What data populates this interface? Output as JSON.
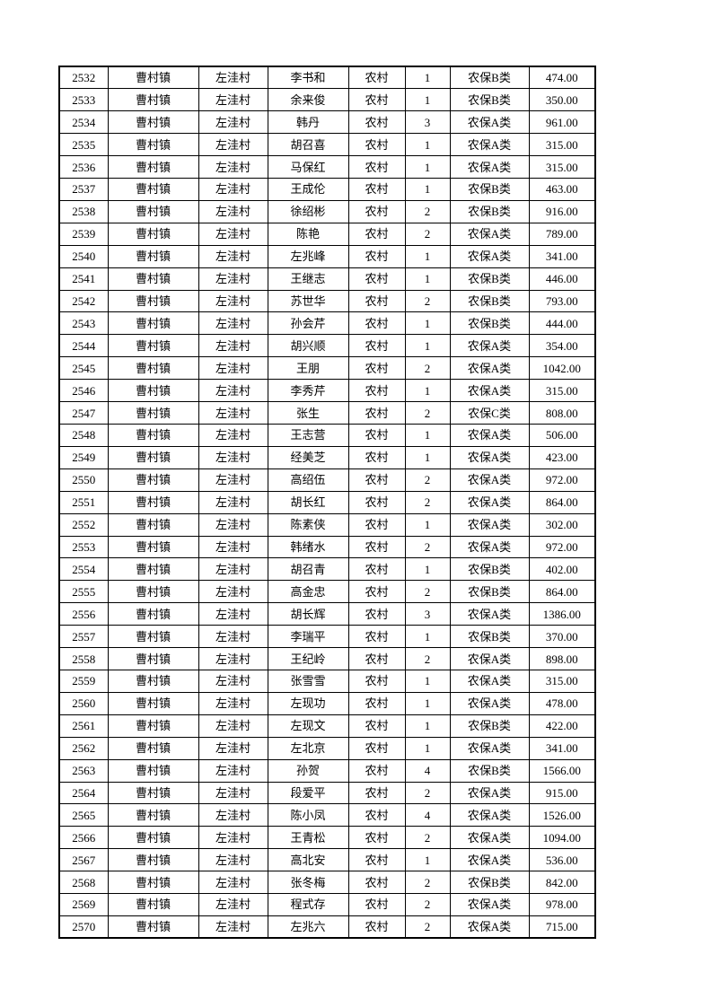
{
  "page": {
    "background_color": "#ffffff",
    "text_color": "#000000",
    "border_color": "#000000"
  },
  "table": {
    "rows": [
      [
        "2532",
        "曹村镇",
        "左洼村",
        "李书和",
        "农村",
        "1",
        "农保B类",
        "474.00"
      ],
      [
        "2533",
        "曹村镇",
        "左洼村",
        "余来俊",
        "农村",
        "1",
        "农保B类",
        "350.00"
      ],
      [
        "2534",
        "曹村镇",
        "左洼村",
        "韩丹",
        "农村",
        "3",
        "农保A类",
        "961.00"
      ],
      [
        "2535",
        "曹村镇",
        "左洼村",
        "胡召喜",
        "农村",
        "1",
        "农保A类",
        "315.00"
      ],
      [
        "2536",
        "曹村镇",
        "左洼村",
        "马保红",
        "农村",
        "1",
        "农保A类",
        "315.00"
      ],
      [
        "2537",
        "曹村镇",
        "左洼村",
        "王成伦",
        "农村",
        "1",
        "农保B类",
        "463.00"
      ],
      [
        "2538",
        "曹村镇",
        "左洼村",
        "徐绍彬",
        "农村",
        "2",
        "农保B类",
        "916.00"
      ],
      [
        "2539",
        "曹村镇",
        "左洼村",
        "陈艳",
        "农村",
        "2",
        "农保A类",
        "789.00"
      ],
      [
        "2540",
        "曹村镇",
        "左洼村",
        "左兆峰",
        "农村",
        "1",
        "农保A类",
        "341.00"
      ],
      [
        "2541",
        "曹村镇",
        "左洼村",
        "王继志",
        "农村",
        "1",
        "农保B类",
        "446.00"
      ],
      [
        "2542",
        "曹村镇",
        "左洼村",
        "苏世华",
        "农村",
        "2",
        "农保B类",
        "793.00"
      ],
      [
        "2543",
        "曹村镇",
        "左洼村",
        "孙会芹",
        "农村",
        "1",
        "农保B类",
        "444.00"
      ],
      [
        "2544",
        "曹村镇",
        "左洼村",
        "胡兴顺",
        "农村",
        "1",
        "农保A类",
        "354.00"
      ],
      [
        "2545",
        "曹村镇",
        "左洼村",
        "王朋",
        "农村",
        "2",
        "农保A类",
        "1042.00"
      ],
      [
        "2546",
        "曹村镇",
        "左洼村",
        "李秀芹",
        "农村",
        "1",
        "农保A类",
        "315.00"
      ],
      [
        "2547",
        "曹村镇",
        "左洼村",
        "张生",
        "农村",
        "2",
        "农保C类",
        "808.00"
      ],
      [
        "2548",
        "曹村镇",
        "左洼村",
        "王志营",
        "农村",
        "1",
        "农保A类",
        "506.00"
      ],
      [
        "2549",
        "曹村镇",
        "左洼村",
        "经美芝",
        "农村",
        "1",
        "农保A类",
        "423.00"
      ],
      [
        "2550",
        "曹村镇",
        "左洼村",
        "高绍伍",
        "农村",
        "2",
        "农保A类",
        "972.00"
      ],
      [
        "2551",
        "曹村镇",
        "左洼村",
        "胡长红",
        "农村",
        "2",
        "农保A类",
        "864.00"
      ],
      [
        "2552",
        "曹村镇",
        "左洼村",
        "陈素侠",
        "农村",
        "1",
        "农保A类",
        "302.00"
      ],
      [
        "2553",
        "曹村镇",
        "左洼村",
        "韩绪水",
        "农村",
        "2",
        "农保A类",
        "972.00"
      ],
      [
        "2554",
        "曹村镇",
        "左洼村",
        "胡召青",
        "农村",
        "1",
        "农保B类",
        "402.00"
      ],
      [
        "2555",
        "曹村镇",
        "左洼村",
        "高金忠",
        "农村",
        "2",
        "农保B类",
        "864.00"
      ],
      [
        "2556",
        "曹村镇",
        "左洼村",
        "胡长辉",
        "农村",
        "3",
        "农保A类",
        "1386.00"
      ],
      [
        "2557",
        "曹村镇",
        "左洼村",
        "李瑞平",
        "农村",
        "1",
        "农保B类",
        "370.00"
      ],
      [
        "2558",
        "曹村镇",
        "左洼村",
        "王纪岭",
        "农村",
        "2",
        "农保A类",
        "898.00"
      ],
      [
        "2559",
        "曹村镇",
        "左洼村",
        "张雪雪",
        "农村",
        "1",
        "农保A类",
        "315.00"
      ],
      [
        "2560",
        "曹村镇",
        "左洼村",
        "左现功",
        "农村",
        "1",
        "农保A类",
        "478.00"
      ],
      [
        "2561",
        "曹村镇",
        "左洼村",
        "左现文",
        "农村",
        "1",
        "农保B类",
        "422.00"
      ],
      [
        "2562",
        "曹村镇",
        "左洼村",
        "左北京",
        "农村",
        "1",
        "农保A类",
        "341.00"
      ],
      [
        "2563",
        "曹村镇",
        "左洼村",
        "孙贺",
        "农村",
        "4",
        "农保B类",
        "1566.00"
      ],
      [
        "2564",
        "曹村镇",
        "左洼村",
        "段爱平",
        "农村",
        "2",
        "农保A类",
        "915.00"
      ],
      [
        "2565",
        "曹村镇",
        "左洼村",
        "陈小凤",
        "农村",
        "4",
        "农保A类",
        "1526.00"
      ],
      [
        "2566",
        "曹村镇",
        "左洼村",
        "王青松",
        "农村",
        "2",
        "农保A类",
        "1094.00"
      ],
      [
        "2567",
        "曹村镇",
        "左洼村",
        "高北安",
        "农村",
        "1",
        "农保A类",
        "536.00"
      ],
      [
        "2568",
        "曹村镇",
        "左洼村",
        "张冬梅",
        "农村",
        "2",
        "农保B类",
        "842.00"
      ],
      [
        "2569",
        "曹村镇",
        "左洼村",
        "程式存",
        "农村",
        "2",
        "农保A类",
        "978.00"
      ],
      [
        "2570",
        "曹村镇",
        "左洼村",
        "左兆六",
        "农村",
        "2",
        "农保A类",
        "715.00"
      ]
    ]
  }
}
